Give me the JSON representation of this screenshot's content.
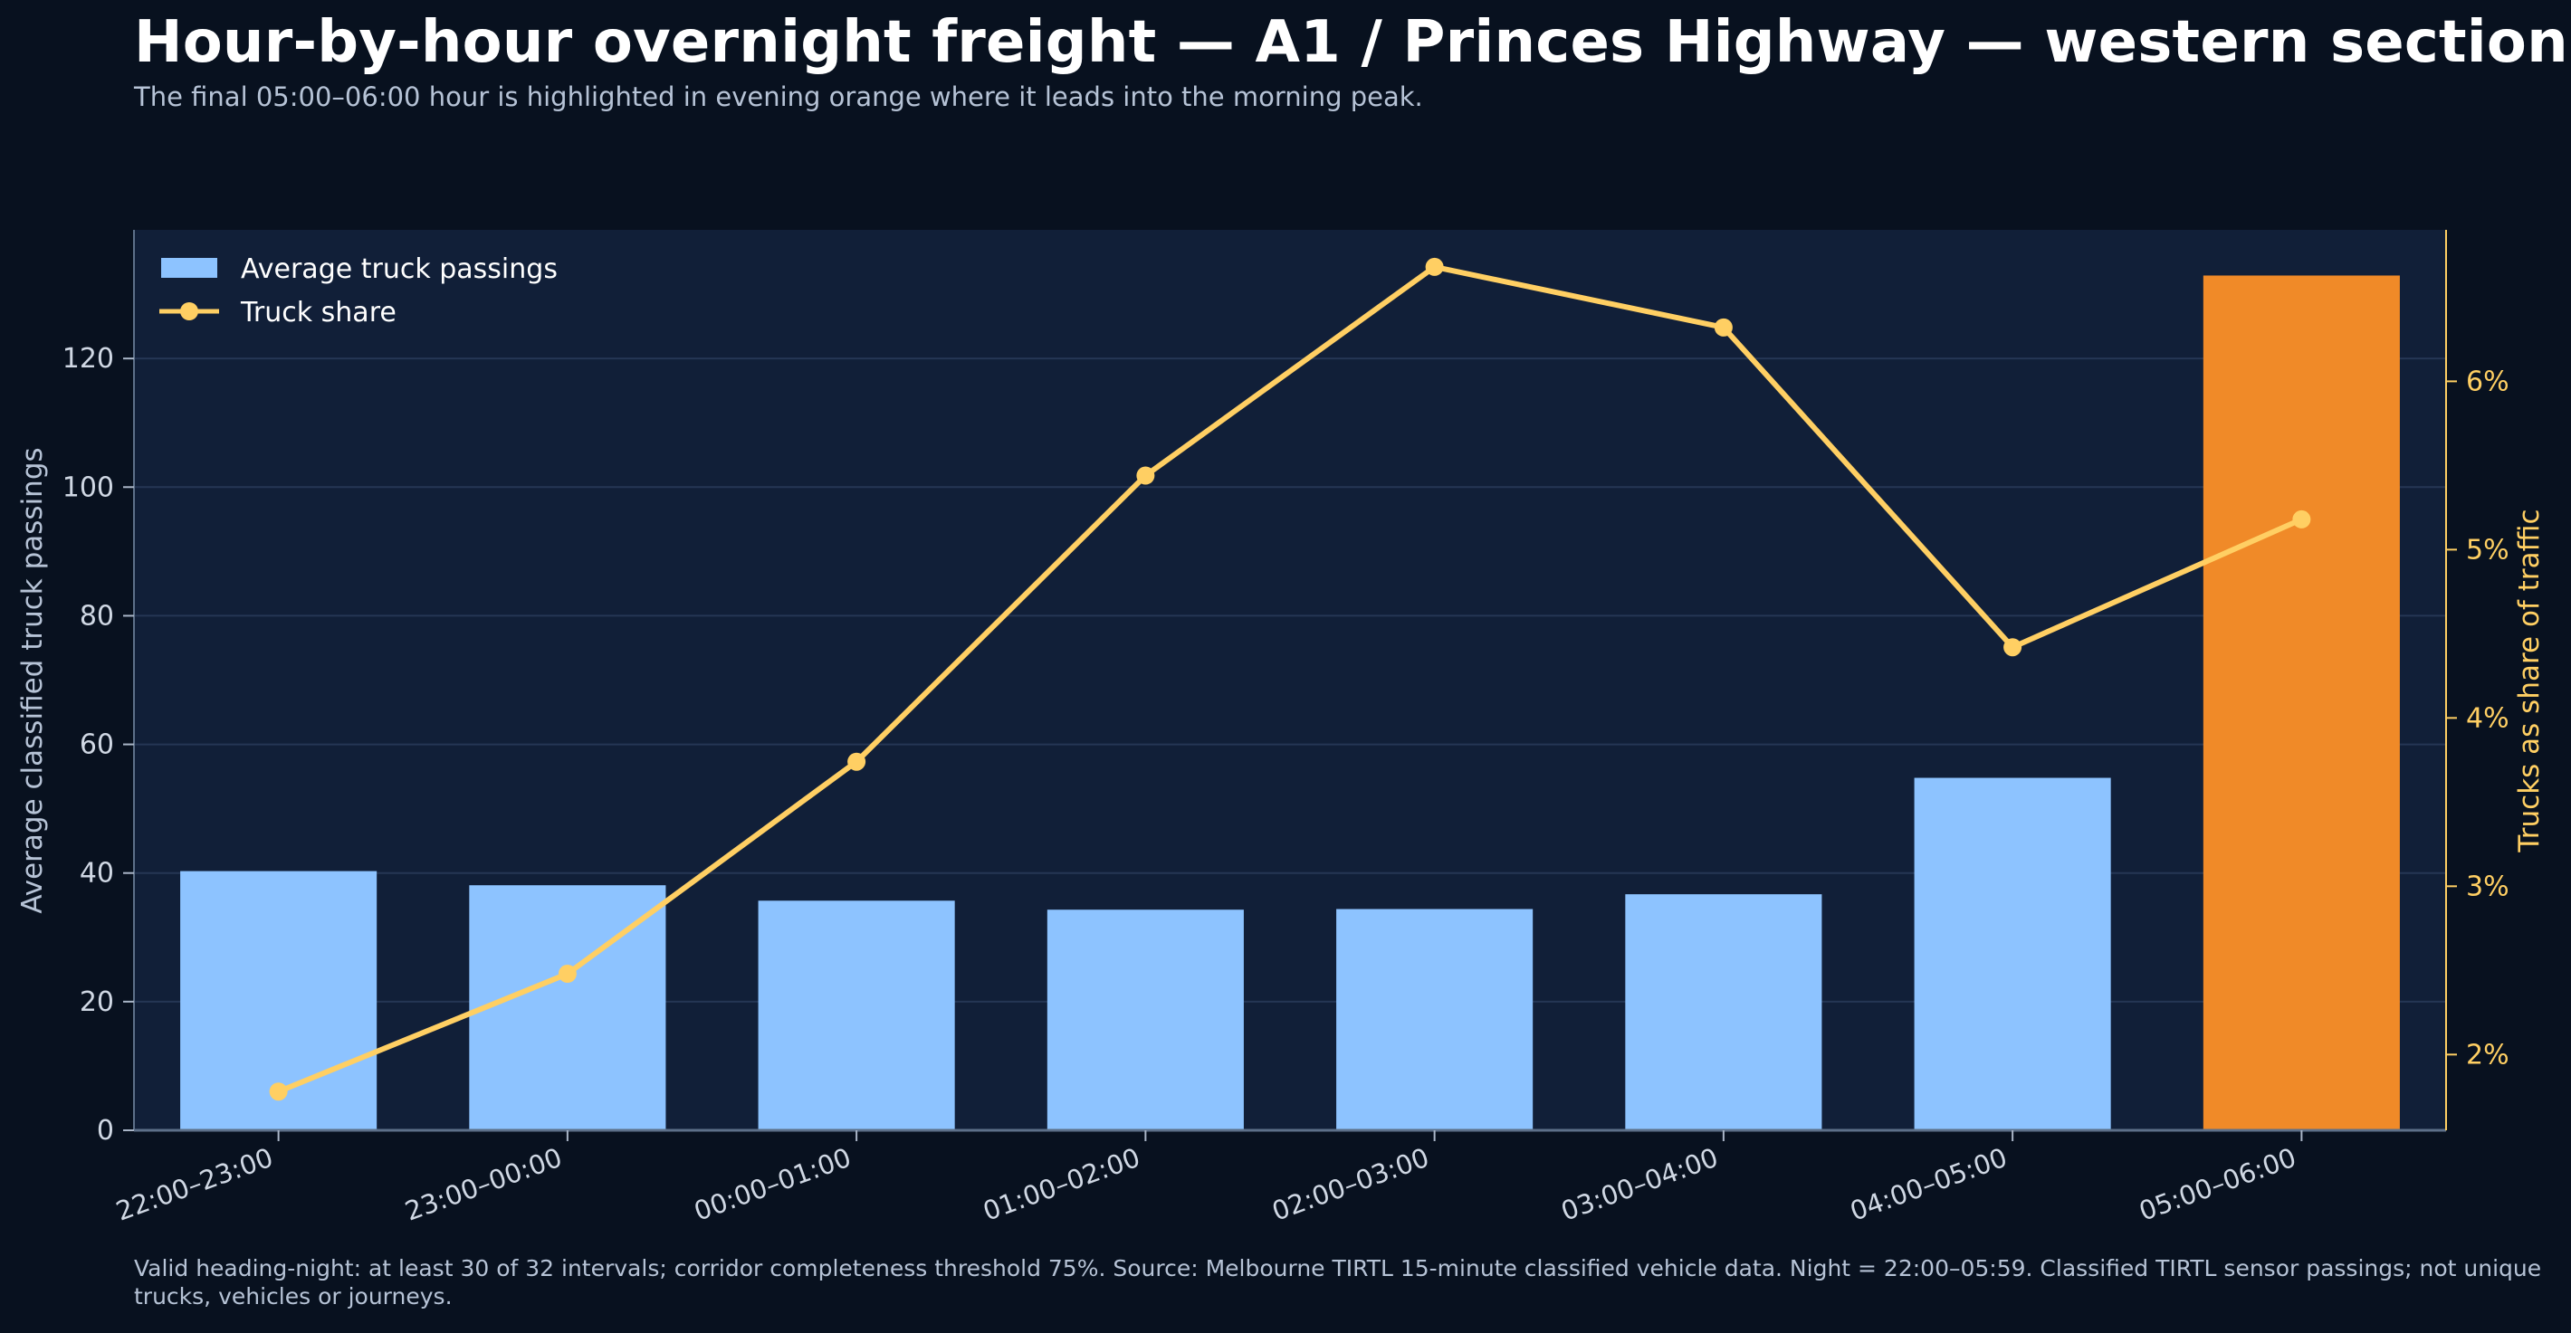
{
  "chart_data": {
    "type": "bar",
    "title": "Hour-by-hour overnight freight — A1 / Princes Highway — western section",
    "subtitle": "The final 05:00–06:00 hour is highlighted in evening orange where it leads into the morning peak.",
    "categories": [
      "22:00–23:00",
      "23:00–00:00",
      "00:00–01:00",
      "01:00–02:00",
      "02:00–03:00",
      "03:00–04:00",
      "04:00–05:00",
      "05:00–06:00"
    ],
    "series": [
      {
        "name": "Average truck passings",
        "type": "bar",
        "axis": "left",
        "values": [
          40.3,
          38.1,
          35.7,
          34.3,
          34.4,
          36.7,
          54.8,
          132.9
        ],
        "color": "#8dc3ff",
        "highlight_index": 7,
        "highlight_color": "#f08a28"
      },
      {
        "name": "Truck share",
        "type": "line",
        "axis": "right",
        "values": [
          1.78,
          2.48,
          3.74,
          5.44,
          6.68,
          6.32,
          4.42,
          5.18
        ],
        "color": "#ffcf63"
      }
    ],
    "ylabel": "Average classified truck passings",
    "ylim": [
      0,
      140
    ],
    "yticks": [
      0,
      20,
      40,
      60,
      80,
      100,
      120
    ],
    "y2label": "Trucks as share of traffic",
    "y2lim": [
      1.55,
      6.9
    ],
    "y2ticks": [
      2,
      3,
      4,
      5,
      6
    ],
    "y2tick_suffix": "%",
    "grid": "horizontal",
    "legend_position": "top-left"
  },
  "footnote": "Valid heading-night: at least 30 of 32 intervals; corridor completeness threshold 75%. Source: Melbourne TIRTL 15-minute classified vehicle data. Night = 22:00–05:59. Classified TIRTL sensor passings; not unique trucks, vehicles or journeys.",
  "colors": {
    "background": "#08111f",
    "plot_background": "#111f38",
    "grid": "#253654",
    "axis_text": "#d0d8e4",
    "right_axis": "#ffcf63"
  }
}
